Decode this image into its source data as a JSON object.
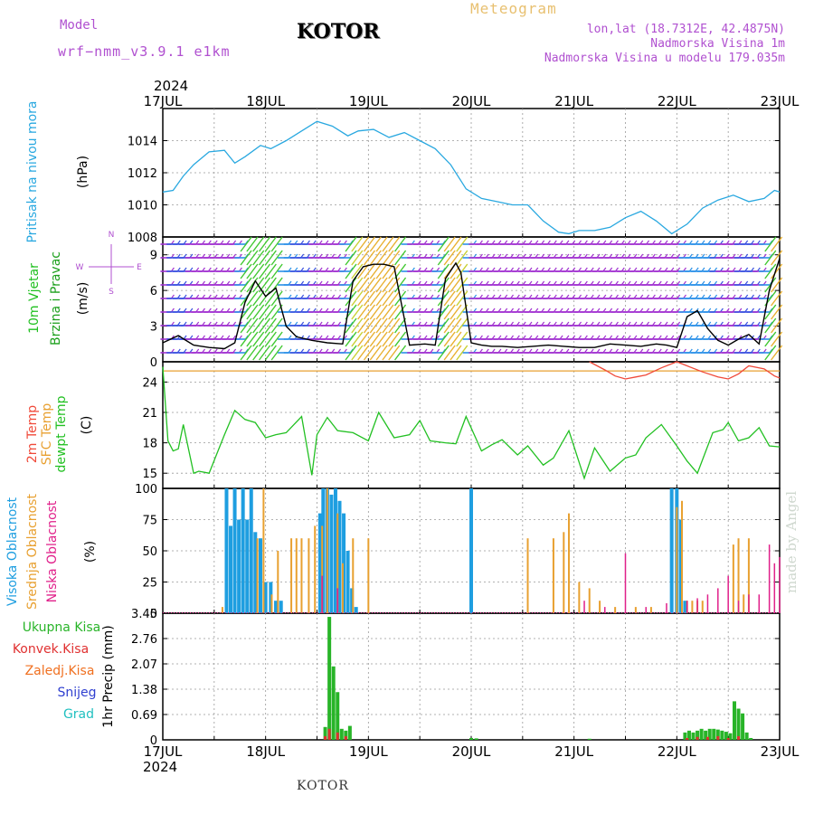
{
  "header": {
    "model_label": "Model",
    "model_name": "wrf−nmm_v3.9.1  e1km",
    "station": "KOTOR",
    "chart_kind": "Meteogram",
    "coords": "lon,lat (18.7312E, 42.4875N)",
    "elevation": "Nadmorska Visina 1m",
    "model_elevation": "Nadmorska Visina u modelu 179.035m",
    "footer_station": "KOTOR",
    "credit": "made by Angel"
  },
  "colors": {
    "pressure": "#29a8e0",
    "wind_label": "#21c021",
    "wind_label2": "#1ca01c",
    "temp2m": "#f04a3a",
    "sfc_temp": "#e8a030",
    "dewpt": "#22c022",
    "high_cloud": "#1e9ee0",
    "mid_cloud": "#e8a030",
    "low_cloud": "#e0208a",
    "total_rain": "#28b428",
    "conv_rain": "#e03030",
    "frozen": "#f07020",
    "snow": "#3040d0",
    "hail": "#20c0c0",
    "compass": "#b050d0"
  },
  "chart_data": [
    {
      "type": "line",
      "panel": "pressure",
      "ylabel_left": "Pritisak na nivou mora",
      "ylabel_unit": "(hPa)",
      "ylim": [
        1008,
        1016
      ],
      "yticks": [
        1008,
        1010,
        1012,
        1014
      ],
      "x_year": "2024",
      "xticks": [
        "17JUL",
        "18JUL",
        "19JUL",
        "20JUL",
        "21JUL",
        "22JUL",
        "23JUL"
      ],
      "x_days": [
        0,
        1,
        2,
        3,
        4,
        5,
        6
      ],
      "xlim": [
        0,
        6
      ],
      "grid": true,
      "series": [
        {
          "x": [
            0,
            0.1,
            0.2,
            0.3,
            0.45,
            0.6,
            0.7,
            0.8,
            0.95,
            1.05,
            1.2,
            1.35,
            1.5,
            1.65,
            1.8,
            1.9,
            2.05,
            2.2,
            2.35,
            2.5,
            2.65,
            2.8,
            2.95,
            3.1,
            3.25,
            3.4,
            3.55,
            3.7,
            3.85,
            3.95,
            4.05,
            4.2,
            4.35,
            4.5,
            4.65,
            4.8,
            4.95,
            5.1,
            5.25,
            5.4,
            5.55,
            5.7,
            5.85,
            5.95,
            6.0
          ],
          "y": [
            1010.8,
            1010.9,
            1011.8,
            1012.5,
            1013.3,
            1013.4,
            1012.6,
            1013.0,
            1013.7,
            1013.5,
            1014.0,
            1014.6,
            1015.2,
            1014.9,
            1014.3,
            1014.6,
            1014.7,
            1014.2,
            1014.5,
            1014.0,
            1013.5,
            1012.5,
            1011.0,
            1010.4,
            1010.2,
            1010.0,
            1010.0,
            1009.0,
            1008.3,
            1008.2,
            1008.4,
            1008.4,
            1008.6,
            1009.2,
            1009.6,
            1009.0,
            1008.2,
            1008.8,
            1009.8,
            1010.3,
            1010.6,
            1010.2,
            1010.4,
            1010.9,
            1010.8
          ]
        }
      ]
    },
    {
      "type": "line",
      "panel": "wind",
      "ylabel_left": [
        "10m Vjetar",
        "Brzina i Pravac"
      ],
      "ylabel_unit": "(m/s)",
      "compass": {
        "n": "N",
        "s": "S",
        "w": "W",
        "e": "E"
      },
      "ylim": [
        0,
        10.5
      ],
      "yticks": [
        0,
        3,
        6,
        9
      ],
      "series": [
        {
          "name": "speed",
          "x": [
            0,
            0.15,
            0.3,
            0.45,
            0.6,
            0.7,
            0.8,
            0.9,
            1.0,
            1.1,
            1.2,
            1.3,
            1.45,
            1.6,
            1.75,
            1.85,
            1.95,
            2.05,
            2.15,
            2.25,
            2.4,
            2.55,
            2.65,
            2.75,
            2.85,
            2.9,
            3.0,
            3.1,
            3.2,
            3.3,
            3.45,
            3.6,
            3.75,
            3.9,
            4.05,
            4.2,
            4.35,
            4.5,
            4.65,
            4.8,
            4.9,
            5.0,
            5.1,
            5.2,
            5.3,
            5.4,
            5.5,
            5.6,
            5.7,
            5.8,
            5.9,
            6.0
          ],
          "y": [
            1.6,
            2.2,
            1.4,
            1.2,
            1.1,
            1.6,
            5.0,
            6.8,
            5.5,
            6.2,
            3.0,
            2.1,
            1.8,
            1.6,
            1.5,
            6.8,
            8.0,
            8.2,
            8.2,
            8.0,
            1.4,
            1.5,
            1.4,
            7.0,
            8.3,
            7.5,
            1.6,
            1.4,
            1.3,
            1.3,
            1.2,
            1.3,
            1.4,
            1.3,
            1.2,
            1.2,
            1.5,
            1.4,
            1.3,
            1.5,
            1.4,
            1.2,
            3.8,
            4.3,
            2.8,
            1.8,
            1.4,
            1.9,
            2.3,
            1.5,
            6.0,
            8.7
          ]
        }
      ]
    },
    {
      "type": "line",
      "panel": "temperature",
      "ylabel_left": [
        "2m Temp",
        "SFC Temp",
        "dewpt Temp"
      ],
      "ylabel_unit": "(C)",
      "ylim": [
        13.5,
        26
      ],
      "yticks": [
        15,
        18,
        21,
        24
      ],
      "series": [
        {
          "name": "SFC Temp",
          "x": [
            0,
            6
          ],
          "y": [
            25.1,
            25.1
          ]
        },
        {
          "name": "2m Temp",
          "x": [
            4.15,
            4.3,
            4.4,
            4.5,
            4.6,
            4.7,
            4.85,
            5.0,
            5.1,
            5.25,
            5.4,
            5.5,
            5.6,
            5.7,
            5.85,
            5.95,
            6.0
          ],
          "y": [
            26,
            25.2,
            24.6,
            24.3,
            24.5,
            24.7,
            25.4,
            26,
            25.6,
            25.0,
            24.5,
            24.3,
            24.8,
            25.6,
            25.3,
            24.6,
            24.4
          ]
        },
        {
          "name": "dewpt Temp",
          "x": [
            0,
            0.05,
            0.1,
            0.15,
            0.2,
            0.3,
            0.35,
            0.45,
            0.6,
            0.7,
            0.8,
            0.9,
            1.0,
            1.1,
            1.2,
            1.35,
            1.45,
            1.5,
            1.6,
            1.7,
            1.85,
            2.0,
            2.1,
            2.25,
            2.4,
            2.5,
            2.6,
            2.75,
            2.85,
            2.95,
            3.1,
            3.2,
            3.3,
            3.45,
            3.55,
            3.7,
            3.8,
            3.95,
            4.1,
            4.2,
            4.35,
            4.5,
            4.6,
            4.7,
            4.85,
            5.0,
            5.1,
            5.2,
            5.35,
            5.45,
            5.5,
            5.6,
            5.7,
            5.8,
            5.9,
            6.0
          ],
          "y": [
            25.5,
            18.2,
            17.2,
            17.4,
            19.8,
            15.0,
            15.2,
            15.0,
            18.8,
            21.2,
            20.3,
            20.0,
            18.5,
            18.8,
            19.0,
            20.6,
            14.8,
            18.8,
            20.5,
            19.2,
            19.0,
            18.2,
            21.0,
            18.5,
            18.8,
            20.2,
            18.2,
            18.0,
            17.9,
            20.6,
            17.2,
            17.8,
            18.3,
            16.8,
            17.7,
            15.8,
            16.5,
            19.2,
            14.5,
            17.5,
            15.2,
            16.5,
            16.8,
            18.5,
            19.8,
            17.7,
            16.2,
            15.0,
            19.0,
            19.3,
            20.0,
            18.2,
            18.5,
            19.5,
            17.7,
            17.6
          ]
        }
      ]
    },
    {
      "type": "bar",
      "panel": "clouds",
      "ylabel_left": [
        "Visoka Oblacnost",
        "Srednja Oblacnost",
        "Niska Oblacnost"
      ],
      "ylabel_unit": "(%)",
      "ylim": [
        0,
        100
      ],
      "yticks": [
        0,
        25,
        50,
        75,
        100
      ],
      "series": [
        {
          "name": "Visoka Oblacnost",
          "x": [
            0.62,
            0.66,
            0.7,
            0.74,
            0.78,
            0.82,
            0.86,
            0.9,
            0.95,
            1.0,
            1.05,
            1.1,
            1.15,
            1.53,
            1.56,
            1.6,
            1.64,
            1.68,
            1.72,
            1.76,
            1.8,
            1.84,
            1.88,
            3.0,
            4.95,
            5.0,
            5.04,
            5.08
          ],
          "y": [
            100,
            70,
            100,
            75,
            100,
            75,
            100,
            65,
            60,
            25,
            25,
            10,
            10,
            80,
            100,
            100,
            95,
            100,
            90,
            80,
            50,
            20,
            5,
            100,
            100,
            100,
            75,
            10
          ]
        },
        {
          "name": "Srednja Oblacnost",
          "x": [
            0.58,
            0.92,
            0.98,
            1.06,
            1.12,
            1.25,
            1.3,
            1.35,
            1.42,
            1.48,
            1.55,
            1.6,
            1.7,
            1.75,
            1.85,
            2.0,
            3.55,
            3.8,
            3.9,
            3.95,
            4.05,
            4.15,
            4.25,
            4.4,
            4.6,
            4.75,
            5.0,
            5.05,
            5.1,
            5.15,
            5.2,
            5.25,
            5.55,
            5.6,
            5.65,
            5.7
          ],
          "y": [
            5,
            60,
            100,
            15,
            50,
            60,
            60,
            60,
            60,
            70,
            70,
            100,
            80,
            40,
            60,
            60,
            60,
            60,
            65,
            80,
            25,
            20,
            10,
            5,
            5,
            5,
            85,
            90,
            10,
            10,
            10,
            10,
            55,
            60,
            15,
            60
          ]
        },
        {
          "name": "Niska Oblacnost",
          "x": [
            1.55,
            1.7,
            4.1,
            4.3,
            4.5,
            4.7,
            4.9,
            5.1,
            5.2,
            5.3,
            5.4,
            5.5,
            5.6,
            5.7,
            5.8,
            5.9,
            5.95,
            6.0
          ],
          "y": [
            30,
            20,
            10,
            5,
            48,
            5,
            8,
            10,
            12,
            15,
            20,
            30,
            10,
            15,
            15,
            55,
            40,
            45
          ]
        }
      ]
    },
    {
      "type": "bar",
      "panel": "precipitation",
      "ylabel_left": [
        "Ukupna Kisa",
        "Konvek.Kisa",
        "Zaledj.Kisa",
        "Snijeg",
        "Grad"
      ],
      "ylabel_unit": "1hr Precip (mm)",
      "ylim": [
        0,
        3.45
      ],
      "yticks": [
        0,
        0.69,
        1.38,
        2.07,
        2.76,
        3.45
      ],
      "xticks_bottom": [
        "17JUL",
        "18JUL",
        "19JUL",
        "20JUL",
        "21JUL",
        "22JUL",
        "23JUL"
      ],
      "x_year_bottom": "2024",
      "series": [
        {
          "name": "Ukupna Kisa",
          "x": [
            1.58,
            1.62,
            1.66,
            1.7,
            1.74,
            1.78,
            1.82,
            3.0,
            3.05,
            4.15,
            5.08,
            5.12,
            5.16,
            5.2,
            5.24,
            5.28,
            5.32,
            5.36,
            5.4,
            5.44,
            5.48,
            5.52,
            5.56,
            5.6,
            5.64,
            5.68,
            5.72
          ],
          "y": [
            0.35,
            3.35,
            2.0,
            1.3,
            0.3,
            0.25,
            0.38,
            0.05,
            0.04,
            0.03,
            0.2,
            0.25,
            0.2,
            0.25,
            0.3,
            0.25,
            0.3,
            0.3,
            0.28,
            0.25,
            0.22,
            0.18,
            1.05,
            0.85,
            0.72,
            0.2,
            0.05
          ]
        },
        {
          "name": "Konvek.Kisa",
          "x": [
            1.58,
            1.62,
            1.7,
            1.78,
            5.1,
            5.2,
            5.3,
            5.4,
            5.5,
            5.6
          ],
          "y": [
            0.1,
            0.3,
            0.2,
            0.1,
            0.05,
            0.08,
            0.08,
            0.1,
            0.05,
            0.1
          ]
        }
      ]
    }
  ]
}
